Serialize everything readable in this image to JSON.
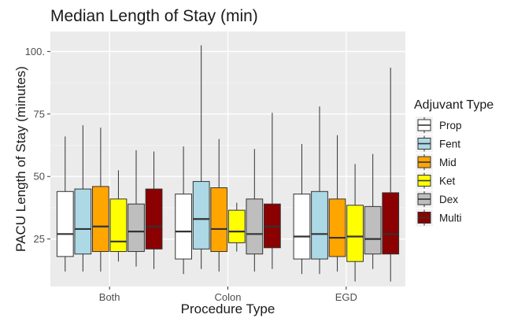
{
  "chart_data": {
    "type": "boxplot",
    "title": "Median Length of Stay (min)",
    "xlabel": "Procedure Type",
    "ylabel": "PACU Length of Stay (minutes)",
    "categories": [
      "Both",
      "Colon",
      "EGD"
    ],
    "ylim": [
      6,
      108
    ],
    "yticks": [
      25,
      50,
      75,
      100
    ],
    "ytick_labels": [
      "25",
      "50",
      "75",
      "100."
    ],
    "grid": true,
    "legend": {
      "title": "Adjuvant Type",
      "position": "right"
    },
    "series": [
      {
        "name": "Prop",
        "color": "#ffffff",
        "boxes": [
          {
            "min": 12,
            "q1": 18,
            "median": 27,
            "q3": 44,
            "max": 66
          },
          {
            "min": 11,
            "q1": 17,
            "median": 28,
            "q3": 43,
            "max": 62
          },
          {
            "min": 11,
            "q1": 17,
            "median": 26,
            "q3": 43,
            "max": 63
          }
        ]
      },
      {
        "name": "Fent",
        "color": "#add8e6",
        "boxes": [
          {
            "min": 12,
            "q1": 19,
            "median": 29,
            "q3": 45,
            "max": 70.5
          },
          {
            "min": 13,
            "q1": 21,
            "median": 33,
            "q3": 48,
            "max": 102.5
          },
          {
            "min": 11,
            "q1": 17,
            "median": 27,
            "q3": 44,
            "max": 78
          }
        ]
      },
      {
        "name": "Mid",
        "color": "#ffa500",
        "boxes": [
          {
            "min": 12,
            "q1": 20,
            "median": 30,
            "q3": 46,
            "max": 69.5
          },
          {
            "min": 12,
            "q1": 20,
            "median": 29,
            "q3": 45.5,
            "max": 65
          },
          {
            "min": 12,
            "q1": 18,
            "median": 25.5,
            "q3": 41,
            "max": 66.5
          }
        ]
      },
      {
        "name": "Ket",
        "color": "#ffff00",
        "boxes": [
          {
            "min": 16,
            "q1": 20,
            "median": 24,
            "q3": 41,
            "max": 52.5
          },
          {
            "min": 20,
            "q1": 23.5,
            "median": 28,
            "q3": 36.5,
            "max": 39.5
          },
          {
            "min": 8,
            "q1": 16,
            "median": 26,
            "q3": 38.5,
            "max": 55
          }
        ]
      },
      {
        "name": "Dex",
        "color": "#bebebe",
        "boxes": [
          {
            "min": 14,
            "q1": 20,
            "median": 28,
            "q3": 39,
            "max": 60.5
          },
          {
            "min": 12,
            "q1": 19,
            "median": 27,
            "q3": 41,
            "max": 61
          },
          {
            "min": 13,
            "q1": 19,
            "median": 25,
            "q3": 38,
            "max": 59
          }
        ]
      },
      {
        "name": "Multi",
        "color": "#8b0000",
        "boxes": [
          {
            "min": 13,
            "q1": 21,
            "median": 30,
            "q3": 45,
            "max": 60
          },
          {
            "min": 13,
            "q1": 21.5,
            "median": 30,
            "q3": 39,
            "max": 75.5
          },
          {
            "min": 8,
            "q1": 19,
            "median": 27,
            "q3": 43.5,
            "max": 93.5
          }
        ]
      }
    ]
  }
}
